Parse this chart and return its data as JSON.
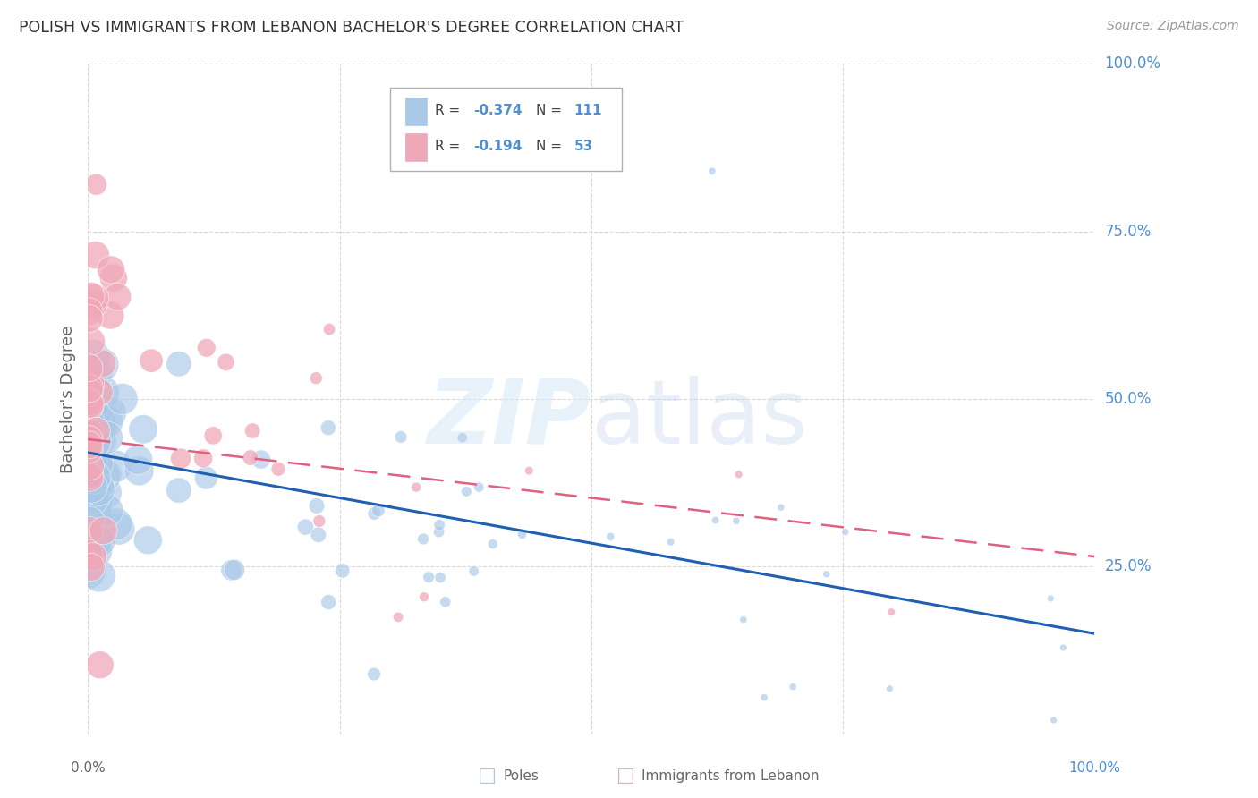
{
  "title": "POLISH VS IMMIGRANTS FROM LEBANON BACHELOR'S DEGREE CORRELATION CHART",
  "source": "Source: ZipAtlas.com",
  "ylabel": "Bachelor's Degree",
  "watermark": "ZIPatlas",
  "legend_label1": "Poles",
  "legend_label2": "Immigrants from Lebanon",
  "blue_color": "#a8c8e8",
  "pink_color": "#f0a8b8",
  "blue_line_color": "#2060b0",
  "pink_line_color": "#e06080",
  "grid_color": "#d0d0d0",
  "right_label_color": "#5090d0",
  "title_color": "#333333",
  "source_color": "#999999",
  "label_color": "#666666",
  "R1": "-0.374",
  "N1": "111",
  "R2": "-0.194",
  "N2": "53",
  "blue_intercept": 0.42,
  "blue_slope": -0.27,
  "pink_intercept": 0.44,
  "pink_slope": -0.175
}
